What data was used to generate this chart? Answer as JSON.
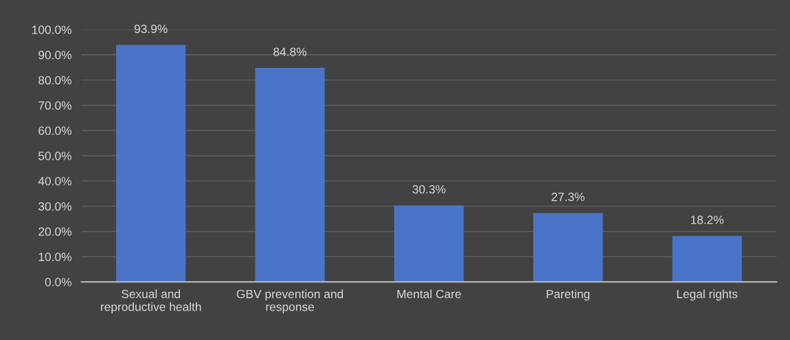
{
  "chart_data": {
    "type": "bar",
    "categories": [
      "Sexual and\nreproductive health",
      "GBV prevention and\nresponse",
      "Mental Care",
      "Pareting",
      "Legal rights"
    ],
    "values": [
      93.9,
      84.8,
      30.3,
      27.3,
      18.2
    ],
    "value_labels": [
      "93.9%",
      "84.8%",
      "30.3%",
      "27.3%",
      "18.2%"
    ],
    "color": "#4a74c8",
    "ylim": [
      0,
      100
    ],
    "yticks": [
      {
        "value": 0,
        "label": "0.0%"
      },
      {
        "value": 10,
        "label": "10.0%"
      },
      {
        "value": 20,
        "label": "20.0%"
      },
      {
        "value": 30,
        "label": "30.0%"
      },
      {
        "value": 40,
        "label": "40.0%"
      },
      {
        "value": 50,
        "label": "50.0%"
      },
      {
        "value": 60,
        "label": "60.0%"
      },
      {
        "value": 70,
        "label": "70.0%"
      },
      {
        "value": 80,
        "label": "80.0%"
      },
      {
        "value": 90,
        "label": "90.0%"
      },
      {
        "value": 100,
        "label": "100.0%"
      }
    ],
    "grid": "y"
  }
}
